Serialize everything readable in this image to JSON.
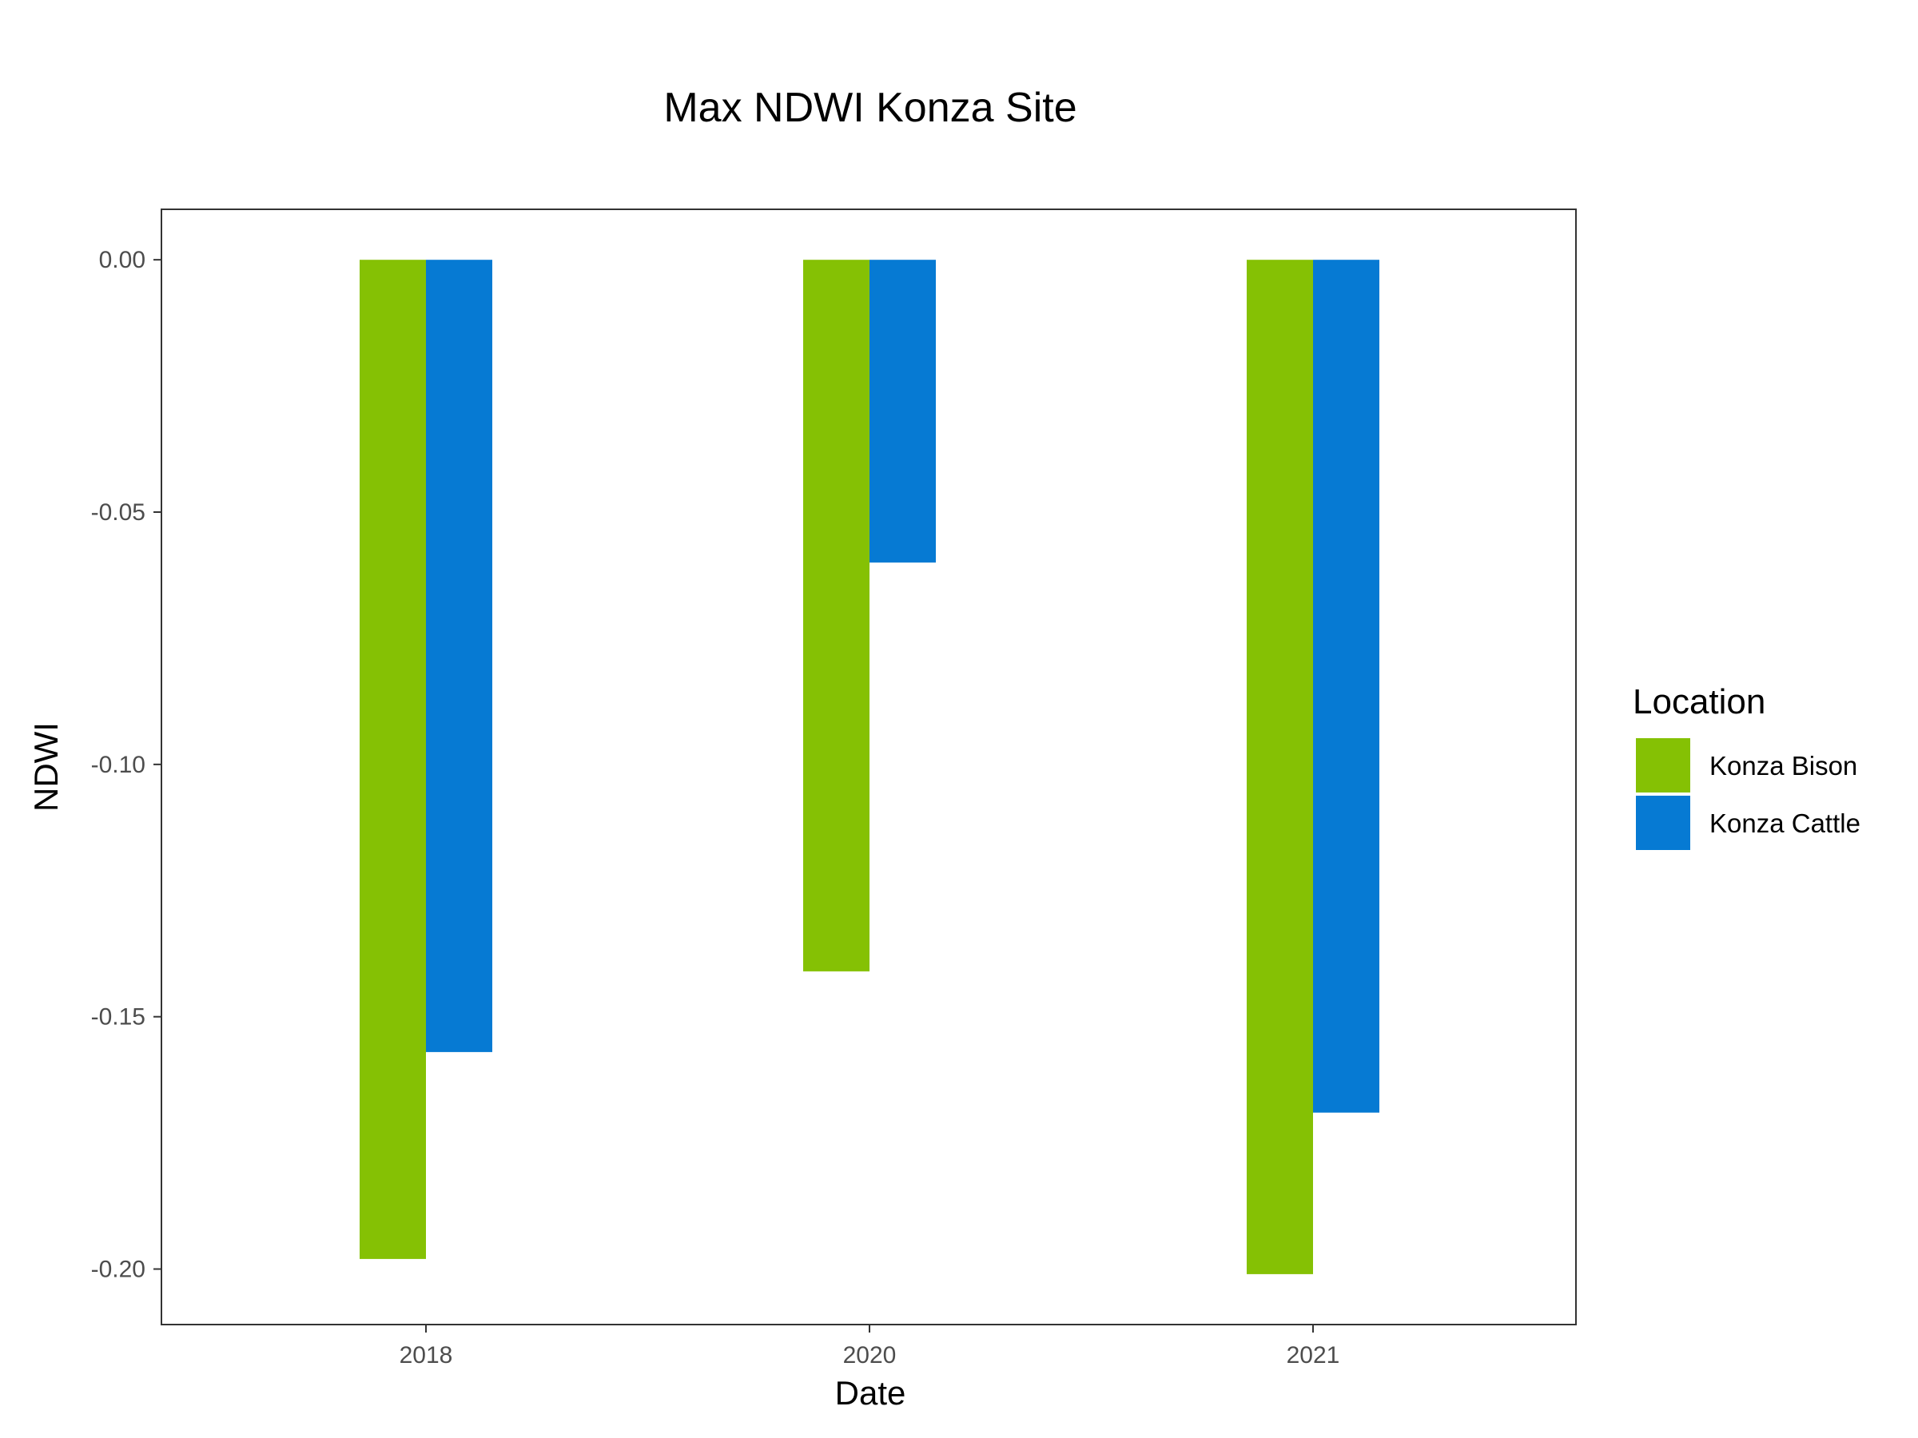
{
  "chart_data": {
    "type": "bar",
    "title": "Max NDWI Konza Site",
    "xlabel": "Date",
    "ylabel": "NDWI",
    "categories": [
      "2018",
      "2020",
      "2021"
    ],
    "series": [
      {
        "name": "Konza Bison",
        "color": "#85c104",
        "values": [
          -0.198,
          -0.141,
          -0.201
        ]
      },
      {
        "name": "Konza Cattle",
        "color": "#067ad3",
        "values": [
          -0.157,
          -0.06,
          -0.169
        ]
      }
    ],
    "ylim": [
      -0.211,
      0.01
    ],
    "yticks": [
      0.0,
      -0.05,
      -0.1,
      -0.15,
      -0.2
    ],
    "ytick_labels": [
      "0.00",
      "-0.05",
      "-0.10",
      "-0.15",
      "-0.20"
    ],
    "legend": {
      "title": "Location",
      "position": "right"
    },
    "grid": false
  }
}
